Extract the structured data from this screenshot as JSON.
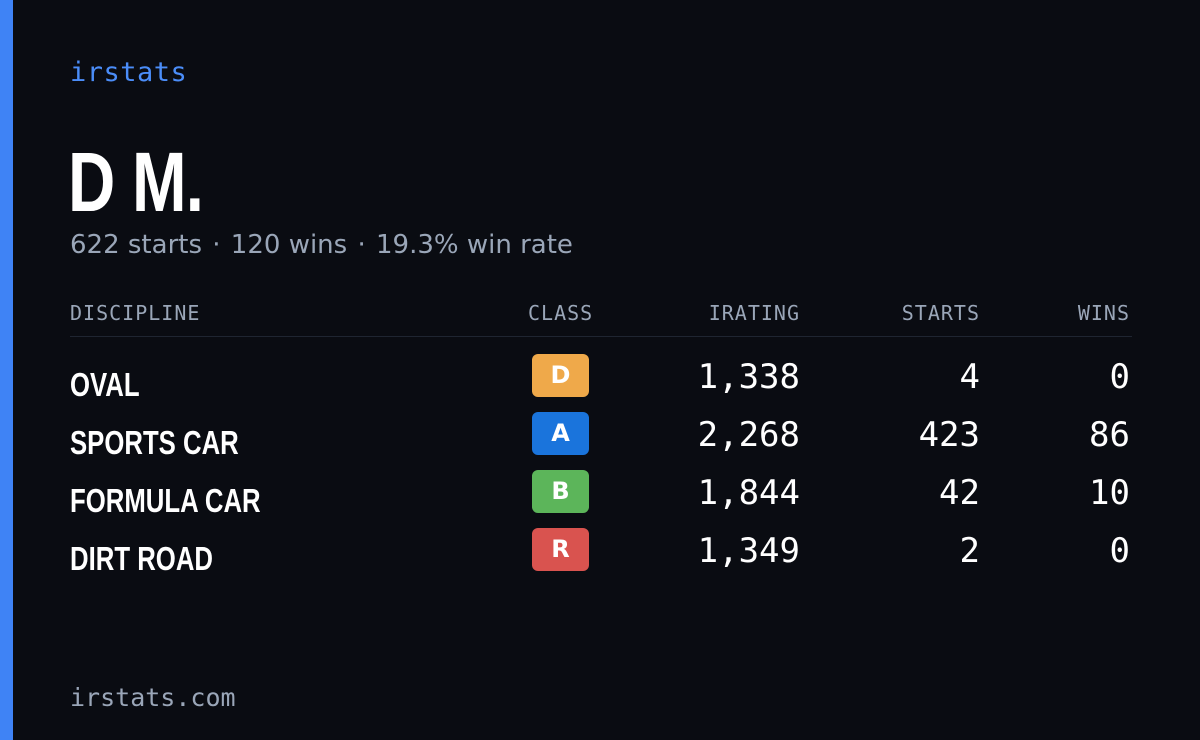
{
  "brand": "irstats",
  "driver": {
    "name": "D M.",
    "starts_text": "622 starts",
    "wins_text": "120 wins",
    "winrate_text": "19.3% win rate",
    "separator": "·"
  },
  "table": {
    "headers": {
      "discipline": "DISCIPLINE",
      "class": "CLASS",
      "irating": "IRATING",
      "starts": "STARTS",
      "wins": "WINS"
    },
    "rows": [
      {
        "discipline": "OVAL",
        "class": "D",
        "class_color": "#efa94a",
        "irating": "1,338",
        "starts": "4",
        "wins": "0"
      },
      {
        "discipline": "SPORTS CAR",
        "class": "A",
        "class_color": "#1a74dc",
        "irating": "2,268",
        "starts": "423",
        "wins": "86"
      },
      {
        "discipline": "FORMULA CAR",
        "class": "B",
        "class_color": "#5cb55a",
        "irating": "1,844",
        "starts": "42",
        "wins": "10"
      },
      {
        "discipline": "DIRT ROAD",
        "class": "R",
        "class_color": "#d9534f",
        "irating": "1,349",
        "starts": "2",
        "wins": "0"
      }
    ]
  },
  "footer": "irstats.com",
  "colors": {
    "background": "#0a0c12",
    "accent": "#3f83f5",
    "brand": "#4b8df8",
    "muted": "#9aa6b8"
  }
}
